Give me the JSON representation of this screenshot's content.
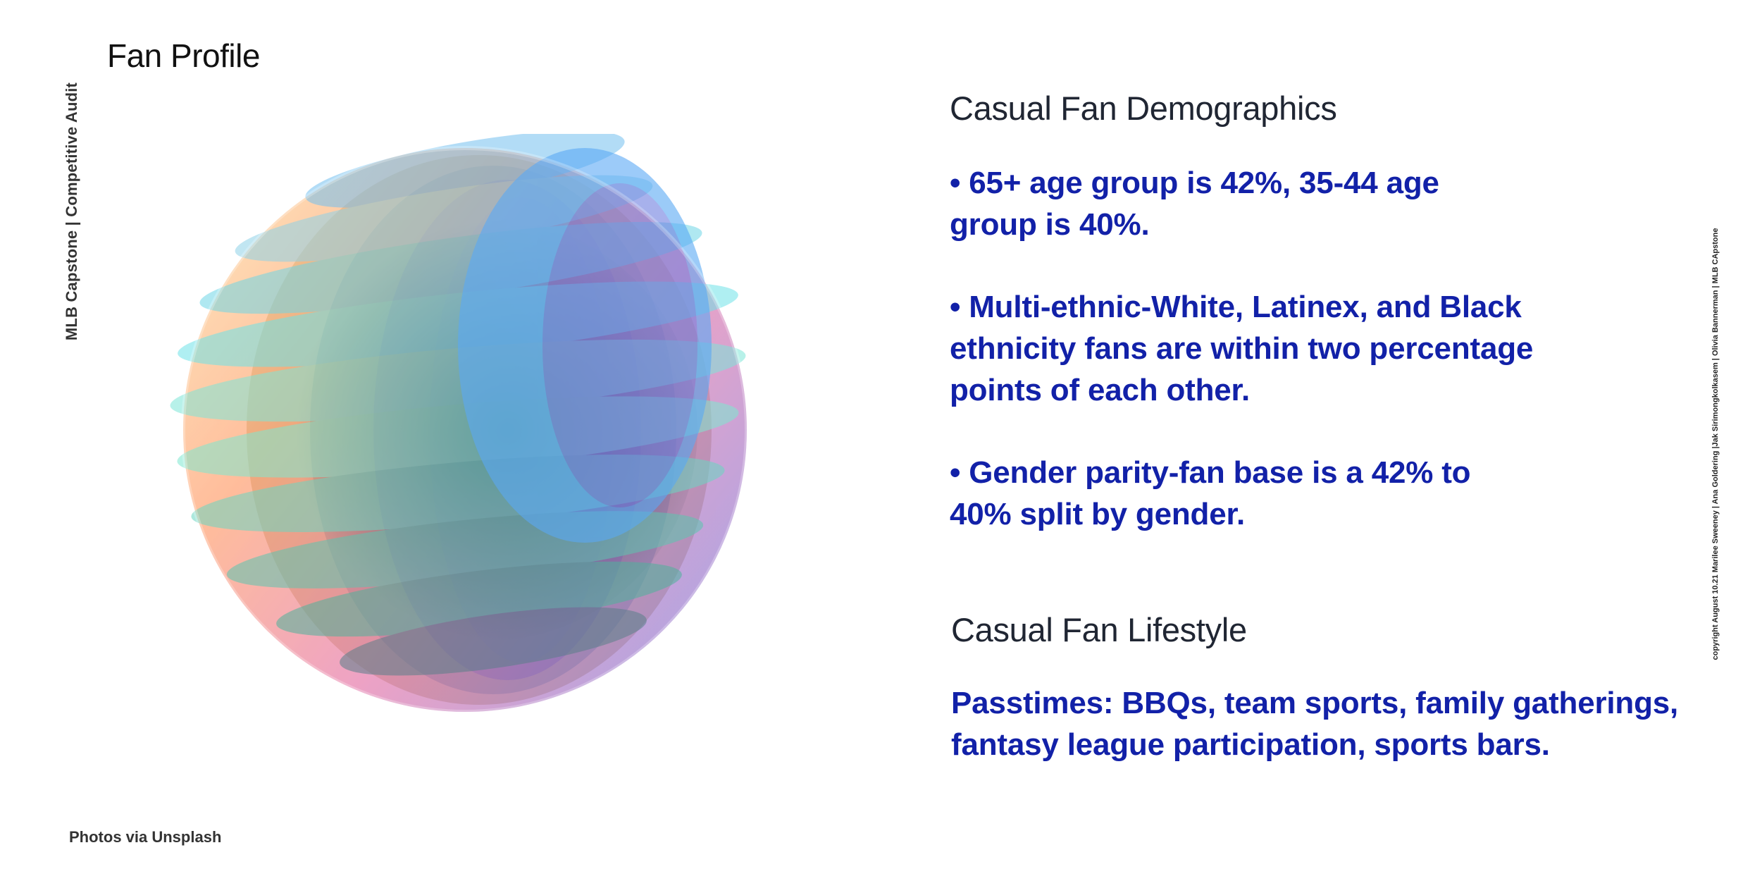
{
  "side_label": "MLB Capstone |  Competitive Audit",
  "page_title": "Fan Profile",
  "demographics": {
    "heading": "Casual Fan Demographics",
    "bullets": [
      "• 65+ age group is 42%, 35-44 age group is 40%.",
      "• Multi-ethnic-White, Latinex, and Black ethnicity fans are within two percentage points of each other.",
      "• Gender parity-fan base is a 42% to 40% split by gender."
    ]
  },
  "lifestyle": {
    "heading": "Casual Fan Lifestyle",
    "text": "Passtimes: BBQs, team sports, family gatherings, fantasy league participation, sports bars."
  },
  "copyright": "copyright August 10.21 Marilee Sweeney | Ana Goldering |Jak Sirimongkolkasem | Olivia Bannerman |  MLB CApstone",
  "photo_credit": "Photos via Unsplash",
  "colors": {
    "body_text": "#1221a8",
    "heading": "#202633"
  },
  "image": {
    "subject": "abstract-gradient-sphere"
  }
}
